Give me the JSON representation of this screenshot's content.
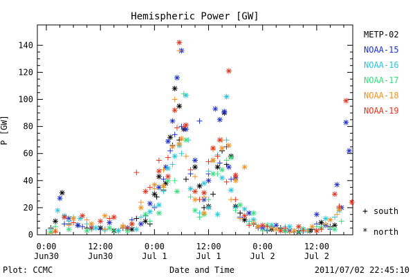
{
  "chart_data": {
    "type": "scatter",
    "title": "Hemispheric Power [GW]",
    "xlabel": "Date and Time",
    "ylabel": "P [GW]",
    "x_unit": "hours from 2011-06-30 00:00 UT",
    "xlim": [
      -2,
      68
    ],
    "ylim": [
      0,
      155
    ],
    "x_ticks": [
      {
        "x": 0,
        "line1": "0:00",
        "line2": "Jun30"
      },
      {
        "x": 12,
        "line1": "12:00",
        "line2": "Jun30"
      },
      {
        "x": 24,
        "line1": "0:00",
        "line2": "Jul 1"
      },
      {
        "x": 36,
        "line1": "12:00",
        "line2": "Jul 1"
      },
      {
        "x": 48,
        "line1": "0:00",
        "line2": "Jul 2"
      },
      {
        "x": 60,
        "line1": "12:00",
        "line2": "Jul 2"
      }
    ],
    "y_ticks": [
      "0",
      "20",
      "40",
      "60",
      "80",
      "100",
      "120",
      "140"
    ],
    "grid": false,
    "markers": [
      {
        "symbol": "+",
        "label": "south"
      },
      {
        "symbol": "*",
        "label": "north"
      }
    ],
    "series": [
      {
        "name": "METP-02",
        "color": "#000000",
        "north": [
          [
            2,
            10
          ],
          [
            3.5,
            31
          ],
          [
            7,
            7
          ],
          [
            12,
            5
          ],
          [
            15,
            3
          ],
          [
            19,
            4
          ],
          [
            22,
            10
          ],
          [
            24,
            30
          ],
          [
            25,
            43
          ],
          [
            26.5,
            38
          ],
          [
            27.5,
            72
          ],
          [
            28.5,
            108
          ],
          [
            29.5,
            95
          ],
          [
            30.5,
            78
          ],
          [
            33,
            50
          ],
          [
            34,
            36
          ],
          [
            36,
            21
          ],
          [
            37,
            55
          ],
          [
            38,
            50
          ],
          [
            39.5,
            90
          ],
          [
            41,
            58
          ],
          [
            42,
            21
          ],
          [
            44,
            11
          ],
          [
            47,
            6
          ],
          [
            50,
            4
          ],
          [
            53,
            3
          ],
          [
            56,
            2
          ],
          [
            58.5,
            3
          ],
          [
            61,
            9
          ],
          [
            64,
            7
          ]
        ],
        "south": [
          [
            1,
            5
          ],
          [
            5,
            8
          ],
          [
            9,
            5
          ],
          [
            13,
            4
          ],
          [
            17,
            5
          ],
          [
            20,
            12
          ],
          [
            23,
            8
          ],
          [
            24.5,
            28
          ],
          [
            26,
            33
          ],
          [
            28,
            66
          ],
          [
            29.5,
            70
          ],
          [
            31,
            41
          ],
          [
            35,
            20
          ],
          [
            37,
            30
          ],
          [
            39,
            62
          ],
          [
            40,
            52
          ],
          [
            43,
            16
          ],
          [
            46,
            8
          ],
          [
            49,
            3
          ],
          [
            52,
            5
          ],
          [
            55,
            2
          ],
          [
            59,
            4
          ],
          [
            63,
            6
          ]
        ]
      },
      {
        "name": "NOAA-15",
        "color": "#1c2fcc",
        "north": [
          [
            3,
            27
          ],
          [
            5,
            12
          ],
          [
            7,
            7
          ],
          [
            10,
            5
          ],
          [
            14,
            9
          ],
          [
            18,
            5
          ],
          [
            21,
            8
          ],
          [
            23,
            23
          ],
          [
            25,
            35
          ],
          [
            26.5,
            50
          ],
          [
            27,
            69
          ],
          [
            28,
            84
          ],
          [
            29,
            116
          ],
          [
            30,
            136
          ],
          [
            31,
            78
          ],
          [
            33,
            55
          ],
          [
            35,
            26
          ],
          [
            36,
            40
          ],
          [
            37.5,
            93
          ],
          [
            38.5,
            85
          ],
          [
            39.5,
            91
          ],
          [
            40.5,
            50
          ],
          [
            42,
            42
          ],
          [
            45,
            16
          ],
          [
            48,
            5
          ],
          [
            51,
            7
          ],
          [
            54,
            3
          ],
          [
            57,
            4
          ],
          [
            60,
            15
          ],
          [
            62,
            7
          ],
          [
            64.5,
            37
          ],
          [
            65.5,
            20
          ],
          [
            66.5,
            83
          ],
          [
            67.2,
            62
          ]
        ],
        "south": [
          [
            1,
            2
          ],
          [
            4,
            8
          ],
          [
            8,
            6
          ],
          [
            12,
            4
          ],
          [
            16,
            3
          ],
          [
            19,
            11
          ],
          [
            22,
            14
          ],
          [
            24,
            20
          ],
          [
            26,
            41
          ],
          [
            27.5,
            62
          ],
          [
            28.5,
            74
          ],
          [
            30,
            80
          ],
          [
            32,
            45
          ],
          [
            34,
            84
          ],
          [
            36,
            45
          ],
          [
            38.5,
            53
          ],
          [
            40,
            65
          ],
          [
            41,
            41
          ],
          [
            43,
            13
          ],
          [
            47,
            5
          ],
          [
            50,
            6
          ],
          [
            53,
            3
          ],
          [
            56,
            2
          ],
          [
            60,
            8
          ],
          [
            63,
            4
          ],
          [
            65,
            20
          ]
        ]
      },
      {
        "name": "NOAA-16",
        "color": "#26c7dd",
        "north": [
          [
            2.5,
            18
          ],
          [
            4,
            14
          ],
          [
            7.5,
            12
          ],
          [
            11,
            5
          ],
          [
            16,
            3
          ],
          [
            20,
            4
          ],
          [
            23,
            17
          ],
          [
            25,
            22
          ],
          [
            27,
            49
          ],
          [
            28.5,
            58
          ],
          [
            29.5,
            66
          ],
          [
            31,
            103
          ],
          [
            32,
            34
          ],
          [
            35,
            38
          ],
          [
            36,
            20
          ],
          [
            38,
            15
          ],
          [
            39,
            42
          ],
          [
            40,
            102
          ],
          [
            41,
            33
          ],
          [
            44,
            19
          ],
          [
            46,
            11
          ],
          [
            50,
            7
          ],
          [
            54,
            6
          ],
          [
            58,
            3
          ],
          [
            62,
            12
          ],
          [
            65,
            18
          ]
        ],
        "south": [
          [
            1,
            4
          ],
          [
            5,
            10
          ],
          [
            9,
            8
          ],
          [
            13,
            3
          ],
          [
            17,
            6
          ],
          [
            21,
            13
          ],
          [
            24,
            21
          ],
          [
            26,
            32
          ],
          [
            28,
            52
          ],
          [
            30,
            60
          ],
          [
            31.5,
            70
          ],
          [
            34,
            16
          ],
          [
            36,
            47
          ],
          [
            38,
            59
          ],
          [
            40,
            70
          ],
          [
            42,
            20
          ],
          [
            45,
            10
          ],
          [
            49,
            4
          ],
          [
            53,
            6
          ],
          [
            57,
            2
          ],
          [
            61,
            5
          ],
          [
            64,
            13
          ]
        ]
      },
      {
        "name": "NOAA-17",
        "color": "#33e07a",
        "north": [
          [
            1,
            2
          ],
          [
            5,
            4
          ],
          [
            9,
            3
          ],
          [
            14,
            5
          ],
          [
            18,
            3
          ],
          [
            22,
            15
          ],
          [
            25,
            16
          ],
          [
            27,
            40
          ],
          [
            29,
            32
          ],
          [
            31,
            70
          ],
          [
            33,
            18
          ],
          [
            35,
            15
          ],
          [
            37,
            45
          ],
          [
            39,
            48
          ],
          [
            41,
            57
          ],
          [
            43,
            22
          ],
          [
            46,
            16
          ],
          [
            49,
            7
          ],
          [
            53,
            3
          ],
          [
            57,
            4
          ],
          [
            61,
            5
          ],
          [
            64,
            4
          ]
        ],
        "south": [
          [
            2,
            6
          ],
          [
            6,
            13
          ],
          [
            10,
            4
          ],
          [
            15,
            3
          ],
          [
            19,
            8
          ],
          [
            23,
            10
          ],
          [
            26,
            35
          ],
          [
            28.5,
            40
          ],
          [
            30.5,
            104
          ],
          [
            32,
            28
          ],
          [
            34,
            13
          ],
          [
            36,
            26
          ],
          [
            38,
            45
          ],
          [
            40,
            55
          ],
          [
            42,
            18
          ],
          [
            45,
            8
          ],
          [
            48,
            3
          ],
          [
            52,
            4
          ],
          [
            56,
            2
          ],
          [
            60,
            6
          ],
          [
            63,
            5
          ],
          [
            65.5,
            10
          ]
        ]
      },
      {
        "name": "NOAA-18",
        "color": "#f2911e",
        "north": [
          [
            2,
            3
          ],
          [
            6,
            12
          ],
          [
            10,
            8
          ],
          [
            13,
            14
          ],
          [
            17,
            6
          ],
          [
            21,
            20
          ],
          [
            24,
            37
          ],
          [
            26,
            36
          ],
          [
            28,
            65
          ],
          [
            29.5,
            67
          ],
          [
            30,
            71
          ],
          [
            33,
            26
          ],
          [
            35,
            16
          ],
          [
            37,
            55
          ],
          [
            39,
            64
          ],
          [
            40.5,
            66
          ],
          [
            42,
            40
          ],
          [
            44,
            50
          ],
          [
            47,
            6
          ],
          [
            51,
            4
          ],
          [
            55,
            3
          ],
          [
            59,
            6
          ],
          [
            63,
            11
          ],
          [
            65,
            19
          ]
        ],
        "south": [
          [
            1,
            1
          ],
          [
            5,
            7
          ],
          [
            9,
            11
          ],
          [
            13,
            4
          ],
          [
            17,
            7
          ],
          [
            21,
            24
          ],
          [
            24,
            34
          ],
          [
            26,
            48
          ],
          [
            28.5,
            100
          ],
          [
            29.5,
            136
          ],
          [
            31,
            58
          ],
          [
            33,
            43
          ],
          [
            35,
            28
          ],
          [
            37,
            63
          ],
          [
            39,
            70
          ],
          [
            41,
            26
          ],
          [
            43,
            12
          ],
          [
            46,
            9
          ],
          [
            50,
            5
          ],
          [
            54,
            2
          ],
          [
            58,
            3
          ],
          [
            62,
            8
          ],
          [
            64.5,
            15
          ]
        ]
      },
      {
        "name": "NOAA-19",
        "color": "#e6321a",
        "north": [
          [
            4,
            13
          ],
          [
            8,
            14
          ],
          [
            12,
            10
          ],
          [
            15,
            13
          ],
          [
            19,
            8
          ],
          [
            22,
            32
          ],
          [
            25,
            47
          ],
          [
            27,
            43
          ],
          [
            28.5,
            92
          ],
          [
            29.5,
            142
          ],
          [
            31,
            81
          ],
          [
            33,
            32
          ],
          [
            35,
            31
          ],
          [
            37,
            64
          ],
          [
            38.5,
            70
          ],
          [
            40.5,
            121
          ],
          [
            42,
            44
          ],
          [
            44,
            14
          ],
          [
            48,
            7
          ],
          [
            52,
            3
          ],
          [
            56,
            6
          ],
          [
            60,
            3
          ],
          [
            64,
            30
          ],
          [
            66.5,
            99
          ],
          [
            67.8,
            24
          ]
        ],
        "south": [
          [
            2,
            2
          ],
          [
            6,
            9
          ],
          [
            10,
            5
          ],
          [
            14,
            12
          ],
          [
            18,
            5
          ],
          [
            20,
            46
          ],
          [
            23,
            35
          ],
          [
            25,
            55
          ],
          [
            27,
            57
          ],
          [
            29,
            79
          ],
          [
            30.5,
            80
          ],
          [
            32,
            48
          ],
          [
            34,
            26
          ],
          [
            36,
            54
          ],
          [
            38,
            58
          ],
          [
            40,
            39
          ],
          [
            42,
            26
          ],
          [
            45,
            7
          ],
          [
            49,
            6
          ],
          [
            53,
            5
          ],
          [
            57,
            3
          ],
          [
            61,
            4
          ],
          [
            65,
            21
          ]
        ]
      }
    ]
  },
  "footer": {
    "plot_credit": "Plot: CCMC",
    "timestamp": "2011/07/02 22:45:10"
  }
}
